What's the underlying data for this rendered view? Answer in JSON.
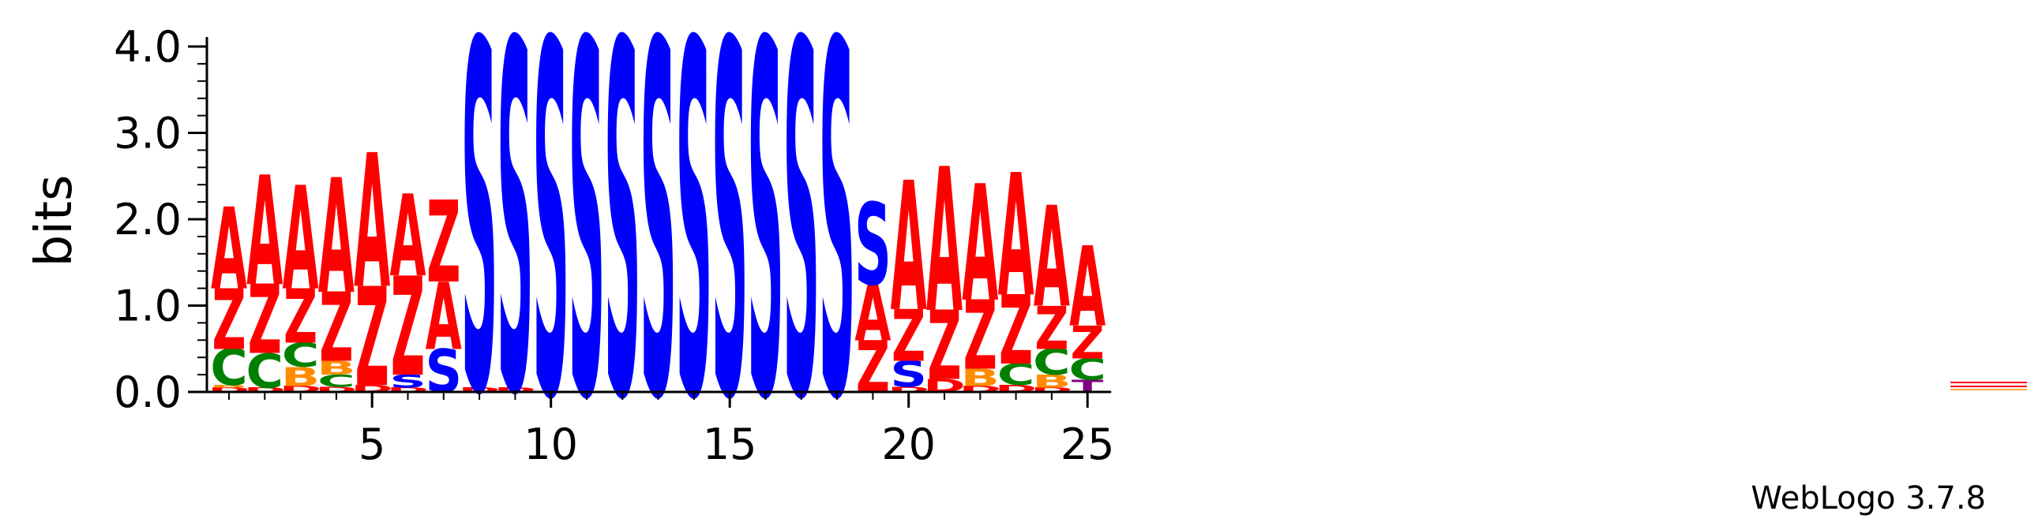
{
  "chart_data": {
    "type": "sequence-logo",
    "title": "",
    "xlabel": "",
    "ylabel": "bits",
    "ylim": [
      0,
      4.0
    ],
    "yticks": [
      "0.0",
      "1.0",
      "2.0",
      "3.0",
      "4.0"
    ],
    "xticks": [
      "5",
      "10",
      "15",
      "20",
      "25"
    ],
    "positions": [
      1,
      2,
      3,
      4,
      5,
      6,
      7,
      8,
      9,
      10,
      11,
      12,
      13,
      14,
      15,
      16,
      17,
      18,
      19,
      20,
      21,
      22,
      23,
      24,
      25
    ],
    "colors": {
      "A": "#ff0000",
      "Z": "#ff0000",
      "S": "#0000ff",
      "C": "#008000",
      "B": "#ff8c00",
      "T": "#800080",
      "D": "#ff0000",
      "G": "#ff0000",
      "Q": "#ff0000"
    },
    "stacks": [
      [
        [
          "D",
          0.05
        ],
        [
          "B",
          0.03
        ],
        [
          "C",
          0.42
        ],
        [
          "Z",
          0.7
        ],
        [
          "A",
          0.95
        ]
      ],
      [
        [
          "D",
          0.05
        ],
        [
          "C",
          0.4
        ],
        [
          "Z",
          0.8
        ],
        [
          "A",
          1.27
        ]
      ],
      [
        [
          "D",
          0.07
        ],
        [
          "B",
          0.22
        ],
        [
          "C",
          0.28
        ],
        [
          "Z",
          0.63
        ],
        [
          "A",
          1.2
        ]
      ],
      [
        [
          "D",
          0.06
        ],
        [
          "C",
          0.14
        ],
        [
          "B",
          0.16
        ],
        [
          "Z",
          0.8
        ],
        [
          "A",
          1.33
        ]
      ],
      [
        [
          "D",
          0.08
        ],
        [
          "Z",
          1.15
        ],
        [
          "A",
          1.55
        ]
      ],
      [
        [
          "D",
          0.05
        ],
        [
          "S",
          0.15
        ],
        [
          "Z",
          1.15
        ],
        [
          "A",
          0.95
        ]
      ],
      [
        [
          "S",
          0.5
        ],
        [
          "A",
          0.78
        ],
        [
          "Z",
          0.95
        ]
      ],
      [
        [
          "D",
          0.05
        ],
        [
          "S",
          4.05
        ]
      ],
      [
        [
          "D",
          0.05
        ],
        [
          "S",
          4.05
        ]
      ],
      [
        [
          "S",
          4.1
        ]
      ],
      [
        [
          "S",
          4.1
        ]
      ],
      [
        [
          "S",
          4.1
        ]
      ],
      [
        [
          "S",
          4.1
        ]
      ],
      [
        [
          "S",
          4.1
        ]
      ],
      [
        [
          "S",
          4.1
        ]
      ],
      [
        [
          "S",
          4.1
        ]
      ],
      [
        [
          "S",
          4.1
        ]
      ],
      [
        [
          "S",
          4.1
        ]
      ],
      [
        [
          "Z",
          0.6
        ],
        [
          "A",
          0.65
        ],
        [
          "S",
          0.95
        ]
      ],
      [
        [
          "D",
          0.06
        ],
        [
          "S",
          0.3
        ],
        [
          "Z",
          0.6
        ],
        [
          "A",
          1.5
        ]
      ],
      [
        [
          "D",
          0.15
        ],
        [
          "Z",
          0.8
        ],
        [
          "A",
          1.67
        ]
      ],
      [
        [
          "D",
          0.07
        ],
        [
          "B",
          0.2
        ],
        [
          "Z",
          0.8
        ],
        [
          "A",
          1.35
        ]
      ],
      [
        [
          "D",
          0.08
        ],
        [
          "C",
          0.25
        ],
        [
          "Z",
          0.8
        ],
        [
          "A",
          1.42
        ]
      ],
      [
        [
          "D",
          0.05
        ],
        [
          "B",
          0.15
        ],
        [
          "C",
          0.3
        ],
        [
          "Z",
          0.5
        ],
        [
          "A",
          1.17
        ]
      ],
      [
        [
          "T",
          0.14
        ],
        [
          "C",
          0.25
        ],
        [
          "Z",
          0.38
        ],
        [
          "A",
          0.93
        ]
      ]
    ],
    "credit": "WebLogo 3.7.8"
  }
}
